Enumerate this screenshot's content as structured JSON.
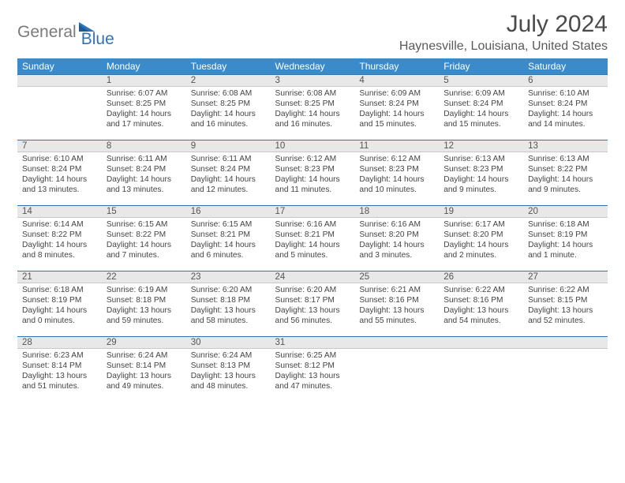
{
  "logo": {
    "general": "General",
    "blue": "Blue"
  },
  "header": {
    "title": "July 2024",
    "location": "Haynesville, Louisiana, United States"
  },
  "colors": {
    "header_bg": "#3b8bca",
    "header_text": "#ffffff",
    "daynum_bg": "#e8e8e8",
    "daynum_border_top": "#2f74b5",
    "text": "#444444",
    "title": "#4a4a4a",
    "logo_gray": "#7a7a7a",
    "logo_blue": "#2f74b5"
  },
  "weekdays": [
    "Sunday",
    "Monday",
    "Tuesday",
    "Wednesday",
    "Thursday",
    "Friday",
    "Saturday"
  ],
  "days": [
    {
      "n": 1,
      "sr": "6:07 AM",
      "ss": "8:25 PM",
      "dl": "14 hours and 17 minutes."
    },
    {
      "n": 2,
      "sr": "6:08 AM",
      "ss": "8:25 PM",
      "dl": "14 hours and 16 minutes."
    },
    {
      "n": 3,
      "sr": "6:08 AM",
      "ss": "8:25 PM",
      "dl": "14 hours and 16 minutes."
    },
    {
      "n": 4,
      "sr": "6:09 AM",
      "ss": "8:24 PM",
      "dl": "14 hours and 15 minutes."
    },
    {
      "n": 5,
      "sr": "6:09 AM",
      "ss": "8:24 PM",
      "dl": "14 hours and 15 minutes."
    },
    {
      "n": 6,
      "sr": "6:10 AM",
      "ss": "8:24 PM",
      "dl": "14 hours and 14 minutes."
    },
    {
      "n": 7,
      "sr": "6:10 AM",
      "ss": "8:24 PM",
      "dl": "14 hours and 13 minutes."
    },
    {
      "n": 8,
      "sr": "6:11 AM",
      "ss": "8:24 PM",
      "dl": "14 hours and 13 minutes."
    },
    {
      "n": 9,
      "sr": "6:11 AM",
      "ss": "8:24 PM",
      "dl": "14 hours and 12 minutes."
    },
    {
      "n": 10,
      "sr": "6:12 AM",
      "ss": "8:23 PM",
      "dl": "14 hours and 11 minutes."
    },
    {
      "n": 11,
      "sr": "6:12 AM",
      "ss": "8:23 PM",
      "dl": "14 hours and 10 minutes."
    },
    {
      "n": 12,
      "sr": "6:13 AM",
      "ss": "8:23 PM",
      "dl": "14 hours and 9 minutes."
    },
    {
      "n": 13,
      "sr": "6:13 AM",
      "ss": "8:22 PM",
      "dl": "14 hours and 9 minutes."
    },
    {
      "n": 14,
      "sr": "6:14 AM",
      "ss": "8:22 PM",
      "dl": "14 hours and 8 minutes."
    },
    {
      "n": 15,
      "sr": "6:15 AM",
      "ss": "8:22 PM",
      "dl": "14 hours and 7 minutes."
    },
    {
      "n": 16,
      "sr": "6:15 AM",
      "ss": "8:21 PM",
      "dl": "14 hours and 6 minutes."
    },
    {
      "n": 17,
      "sr": "6:16 AM",
      "ss": "8:21 PM",
      "dl": "14 hours and 5 minutes."
    },
    {
      "n": 18,
      "sr": "6:16 AM",
      "ss": "8:20 PM",
      "dl": "14 hours and 3 minutes."
    },
    {
      "n": 19,
      "sr": "6:17 AM",
      "ss": "8:20 PM",
      "dl": "14 hours and 2 minutes."
    },
    {
      "n": 20,
      "sr": "6:18 AM",
      "ss": "8:19 PM",
      "dl": "14 hours and 1 minute."
    },
    {
      "n": 21,
      "sr": "6:18 AM",
      "ss": "8:19 PM",
      "dl": "14 hours and 0 minutes."
    },
    {
      "n": 22,
      "sr": "6:19 AM",
      "ss": "8:18 PM",
      "dl": "13 hours and 59 minutes."
    },
    {
      "n": 23,
      "sr": "6:20 AM",
      "ss": "8:18 PM",
      "dl": "13 hours and 58 minutes."
    },
    {
      "n": 24,
      "sr": "6:20 AM",
      "ss": "8:17 PM",
      "dl": "13 hours and 56 minutes."
    },
    {
      "n": 25,
      "sr": "6:21 AM",
      "ss": "8:16 PM",
      "dl": "13 hours and 55 minutes."
    },
    {
      "n": 26,
      "sr": "6:22 AM",
      "ss": "8:16 PM",
      "dl": "13 hours and 54 minutes."
    },
    {
      "n": 27,
      "sr": "6:22 AM",
      "ss": "8:15 PM",
      "dl": "13 hours and 52 minutes."
    },
    {
      "n": 28,
      "sr": "6:23 AM",
      "ss": "8:14 PM",
      "dl": "13 hours and 51 minutes."
    },
    {
      "n": 29,
      "sr": "6:24 AM",
      "ss": "8:14 PM",
      "dl": "13 hours and 49 minutes."
    },
    {
      "n": 30,
      "sr": "6:24 AM",
      "ss": "8:13 PM",
      "dl": "13 hours and 48 minutes."
    },
    {
      "n": 31,
      "sr": "6:25 AM",
      "ss": "8:12 PM",
      "dl": "13 hours and 47 minutes."
    }
  ],
  "labels": {
    "sunrise": "Sunrise:",
    "sunset": "Sunset:",
    "daylight": "Daylight:"
  },
  "layout": {
    "first_day_offset": 1,
    "rows": 5,
    "cols": 7
  }
}
